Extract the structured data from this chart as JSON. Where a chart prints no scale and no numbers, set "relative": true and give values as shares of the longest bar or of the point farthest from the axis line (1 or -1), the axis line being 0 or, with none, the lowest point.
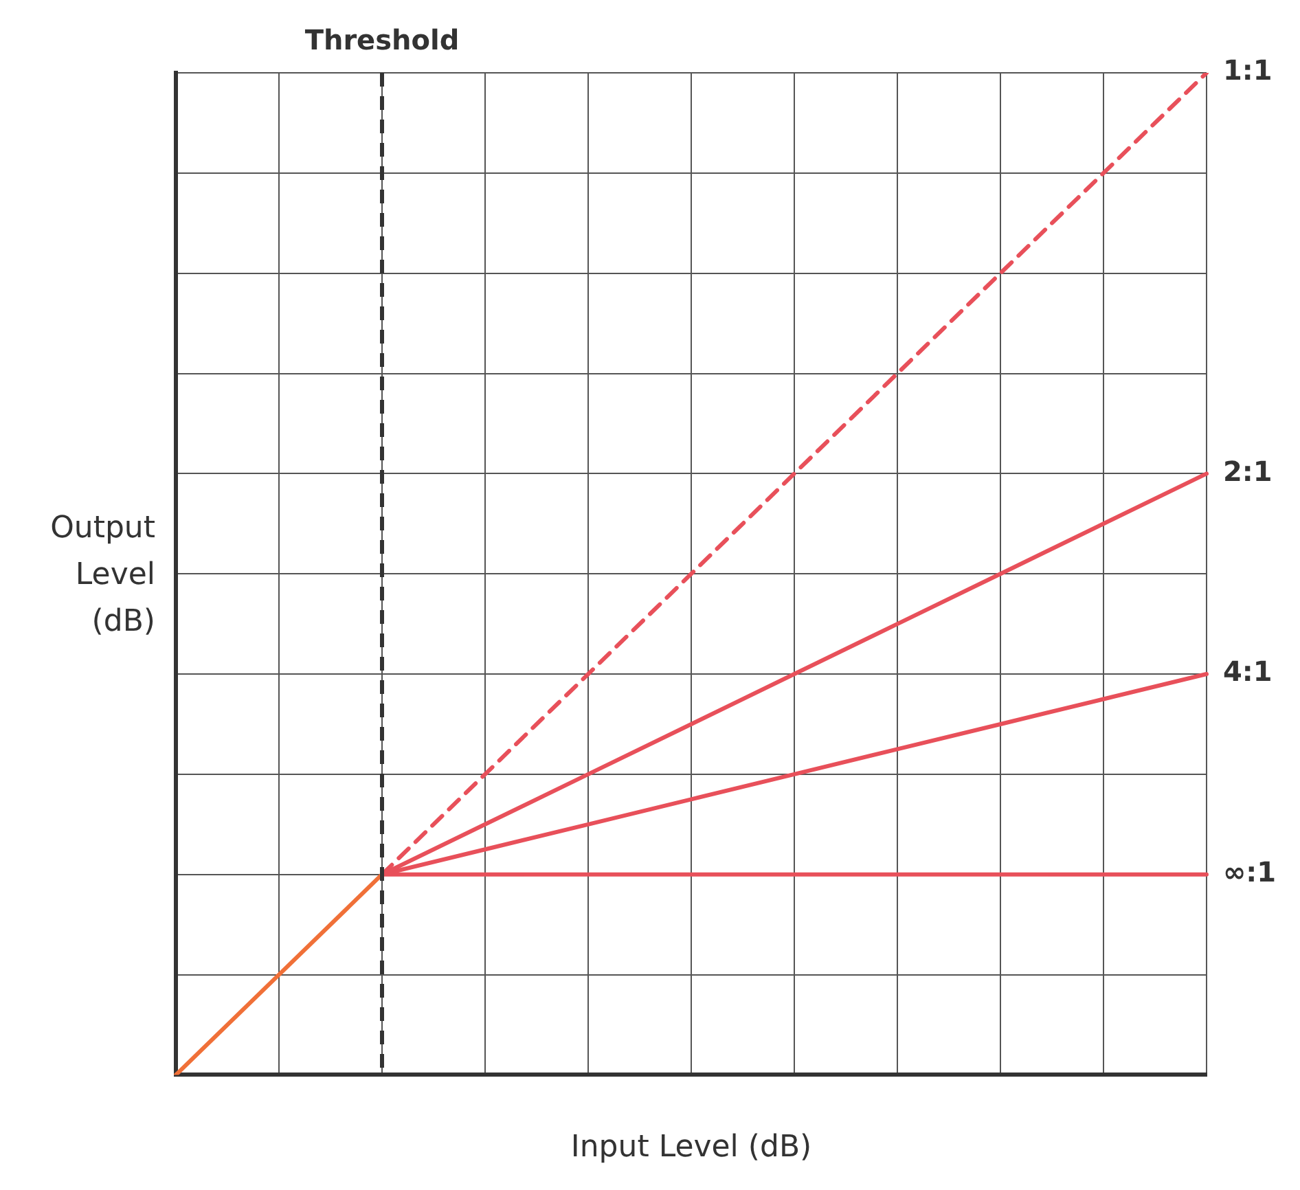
{
  "chart_data": {
    "type": "line",
    "xlabel": "Input Level (dB)",
    "ylabel": "Output Level (dB)",
    "relative": true,
    "categories": [
      null,
      null,
      null,
      null,
      null,
      null,
      null,
      null,
      null,
      null,
      null
    ],
    "grid": true,
    "legend": false,
    "marker": "none",
    "series": [
      {
        "color": "#f07038",
        "values": [
          0,
          0.1,
          0.2,
          null,
          null,
          null,
          null,
          null,
          null,
          null,
          null
        ],
        "line_style": "solid"
      },
      {
        "name": "1:1",
        "color": "#e8505a",
        "values": [
          null,
          null,
          0.2,
          0.3,
          0.4,
          0.5,
          0.6,
          0.7,
          0.8,
          0.9,
          1.0
        ],
        "line_style": "dashed"
      },
      {
        "name": "2:1",
        "color": "#e8505a",
        "values": [
          null,
          null,
          0.2,
          0.25,
          0.3,
          0.35,
          0.4,
          0.45,
          0.5,
          0.55,
          0.6
        ],
        "line_style": "solid"
      },
      {
        "name": "4:1",
        "color": "#e8505a",
        "values": [
          null,
          null,
          0.2,
          0.225,
          0.25,
          0.275,
          0.3,
          0.325,
          0.35,
          0.375,
          0.4
        ],
        "line_style": "solid"
      },
      {
        "name": "∞:1",
        "color": "#e8505a",
        "values": [
          null,
          null,
          0.2,
          0.2,
          0.2,
          0.2,
          0.2,
          0.2,
          0.2,
          0.2,
          0.2
        ],
        "line_style": "solid"
      }
    ],
    "ref_lines": [
      {
        "axis": "x",
        "label": "Threshold",
        "color": "#333333",
        "line_style": "dashed"
      }
    ]
  }
}
